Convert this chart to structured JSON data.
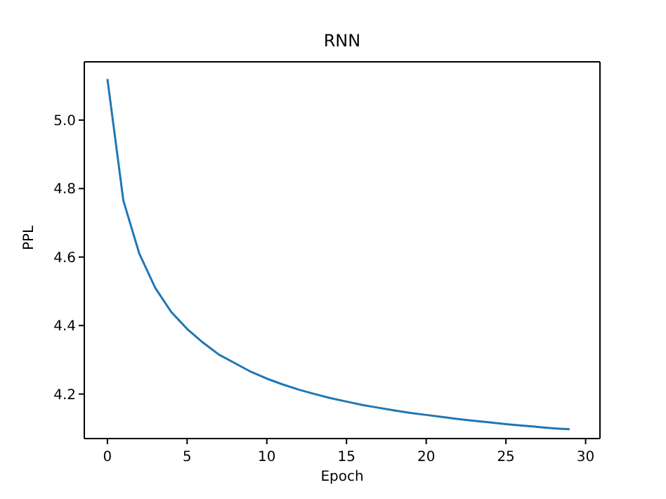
{
  "chart_data": {
    "type": "line",
    "title": "RNN",
    "xlabel": "Epoch",
    "ylabel": "PPL",
    "x": [
      0,
      1,
      2,
      3,
      4,
      5,
      6,
      7,
      8,
      9,
      10,
      11,
      12,
      13,
      14,
      15,
      16,
      17,
      18,
      19,
      20,
      21,
      22,
      23,
      24,
      25,
      26,
      27,
      28,
      29
    ],
    "series": [
      {
        "color": "#1f77b4",
        "values": [
          5.12,
          4.765,
          4.61,
          4.51,
          4.44,
          4.39,
          4.35,
          4.315,
          4.29,
          4.265,
          4.245,
          4.228,
          4.213,
          4.2,
          4.188,
          4.178,
          4.168,
          4.16,
          4.152,
          4.145,
          4.139,
          4.133,
          4.127,
          4.122,
          4.117,
          4.112,
          4.108,
          4.104,
          4.1,
          4.097
        ]
      }
    ],
    "xlim": [
      -1.45,
      30.9
    ],
    "xticks": [
      0,
      5,
      10,
      15,
      20,
      25,
      30
    ],
    "ylim": [
      4.07,
      5.17
    ],
    "yticks": [
      {
        "value": 4.2,
        "label": "4.2"
      },
      {
        "value": 4.4,
        "label": "4.4"
      },
      {
        "value": 4.6,
        "label": "4.6"
      },
      {
        "value": 4.8,
        "label": "4.8"
      },
      {
        "value": 5.0,
        "label": "5.0"
      }
    ],
    "grid": false,
    "legend": false,
    "marker": "none",
    "line_style": "solid"
  }
}
